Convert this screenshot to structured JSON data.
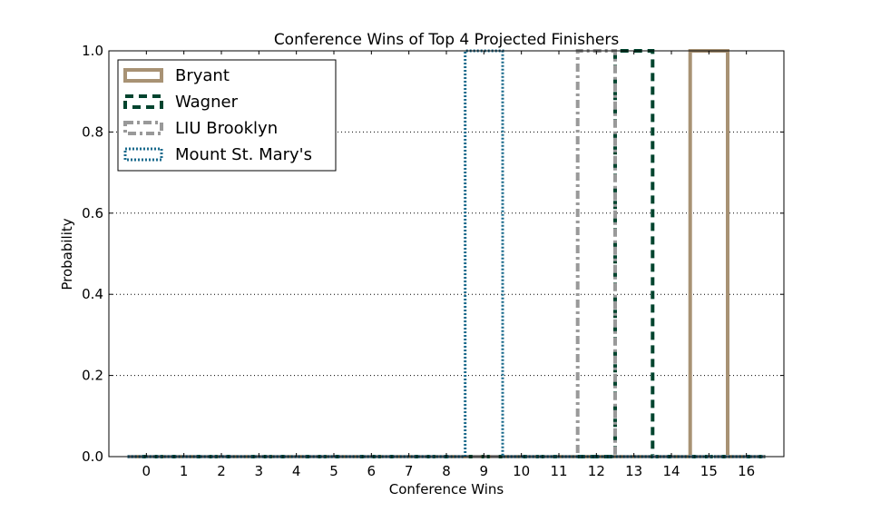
{
  "chart_data": {
    "type": "step",
    "title": "Conference Wins of Top 4 Projected Finishers",
    "xlabel": "Conference Wins",
    "ylabel": "Probability",
    "xlim": [
      -1,
      17
    ],
    "ylim": [
      0,
      1
    ],
    "x_ticks": [
      "0",
      "1",
      "2",
      "3",
      "4",
      "5",
      "6",
      "7",
      "8",
      "9",
      "10",
      "11",
      "12",
      "13",
      "14",
      "15",
      "16"
    ],
    "y_ticks": [
      "0.0",
      "0.2",
      "0.4",
      "0.6",
      "0.8",
      "1.0"
    ],
    "grid": "y-dotted",
    "legend_position": "top-left",
    "x": [
      0,
      1,
      2,
      3,
      4,
      5,
      6,
      7,
      8,
      9,
      10,
      11,
      12,
      13,
      14,
      15,
      16
    ],
    "series": [
      {
        "name": "Bryant",
        "color": "#a89274",
        "style": "solid",
        "values": [
          0,
          0,
          0,
          0,
          0,
          0,
          0,
          0,
          0,
          0,
          0,
          0,
          0,
          0,
          0,
          1,
          0
        ]
      },
      {
        "name": "Wagner",
        "color": "#00442e",
        "style": "dashed",
        "values": [
          0,
          0,
          0,
          0,
          0,
          0,
          0,
          0,
          0,
          0,
          0,
          0,
          0,
          1,
          0,
          0,
          0
        ]
      },
      {
        "name": "LIU Brooklyn",
        "color": "#999999",
        "style": "dashdot",
        "values": [
          0,
          0,
          0,
          0,
          0,
          0,
          0,
          0,
          0,
          0,
          0,
          0,
          1,
          0,
          0,
          0,
          0
        ]
      },
      {
        "name": "Mount St. Mary's",
        "color": "#1a6a8c",
        "style": "dotted",
        "values": [
          0,
          0,
          0,
          0,
          0,
          0,
          0,
          0,
          0,
          1,
          0,
          0,
          0,
          0,
          0,
          0,
          0
        ]
      }
    ]
  }
}
